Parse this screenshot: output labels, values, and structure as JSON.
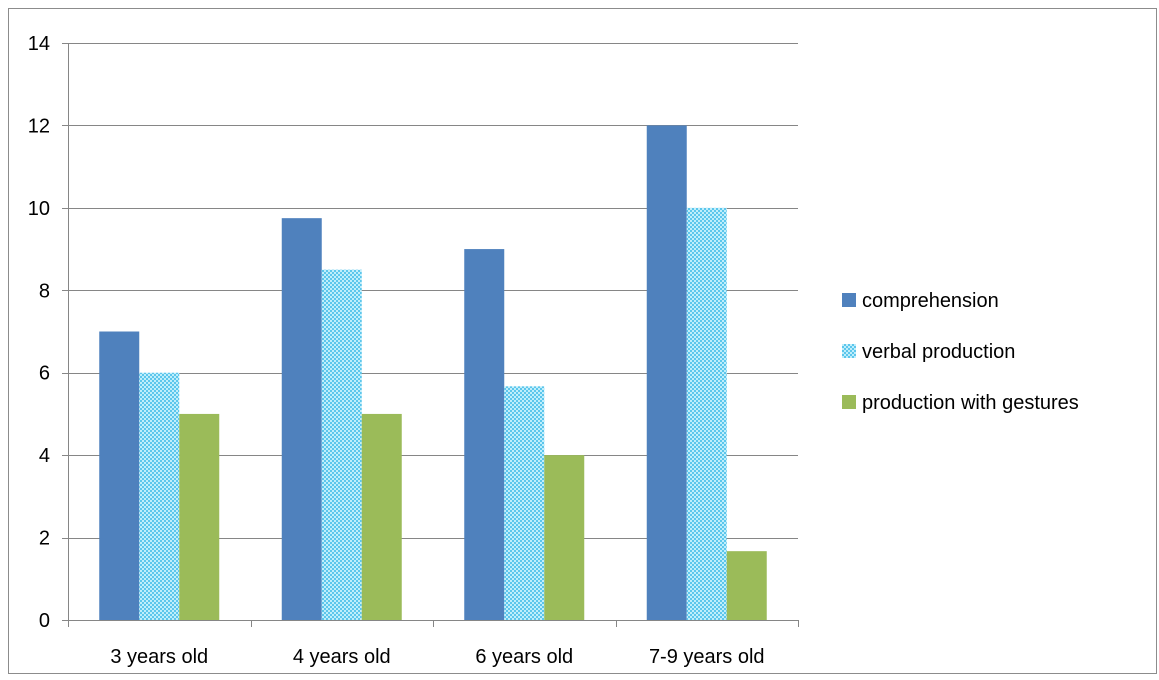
{
  "chart_data": {
    "type": "bar",
    "title": "",
    "xlabel": "",
    "ylabel": "",
    "categories": [
      "3 years old",
      "4 years old",
      "6 years old",
      "7-9 years old"
    ],
    "ylim": [
      0,
      14
    ],
    "yticks": [
      0,
      2,
      4,
      6,
      8,
      10,
      12,
      14
    ],
    "ytick_labels": [
      "0",
      "2",
      "4",
      "6",
      "8",
      "10",
      "12",
      "14"
    ],
    "grid": true,
    "legend_position": "right",
    "series": [
      {
        "name": "comprehension",
        "values": [
          7,
          9.75,
          9,
          12
        ],
        "color": "#4f81bd",
        "fill": "solid"
      },
      {
        "name": "verbal production",
        "values": [
          6,
          8.5,
          5.67,
          10
        ],
        "color": "#7fd3f0",
        "fill": "checkered"
      },
      {
        "name": "production with gestures",
        "values": [
          5,
          5,
          4,
          1.67
        ],
        "color": "#9bbb59",
        "fill": "solid"
      }
    ]
  }
}
